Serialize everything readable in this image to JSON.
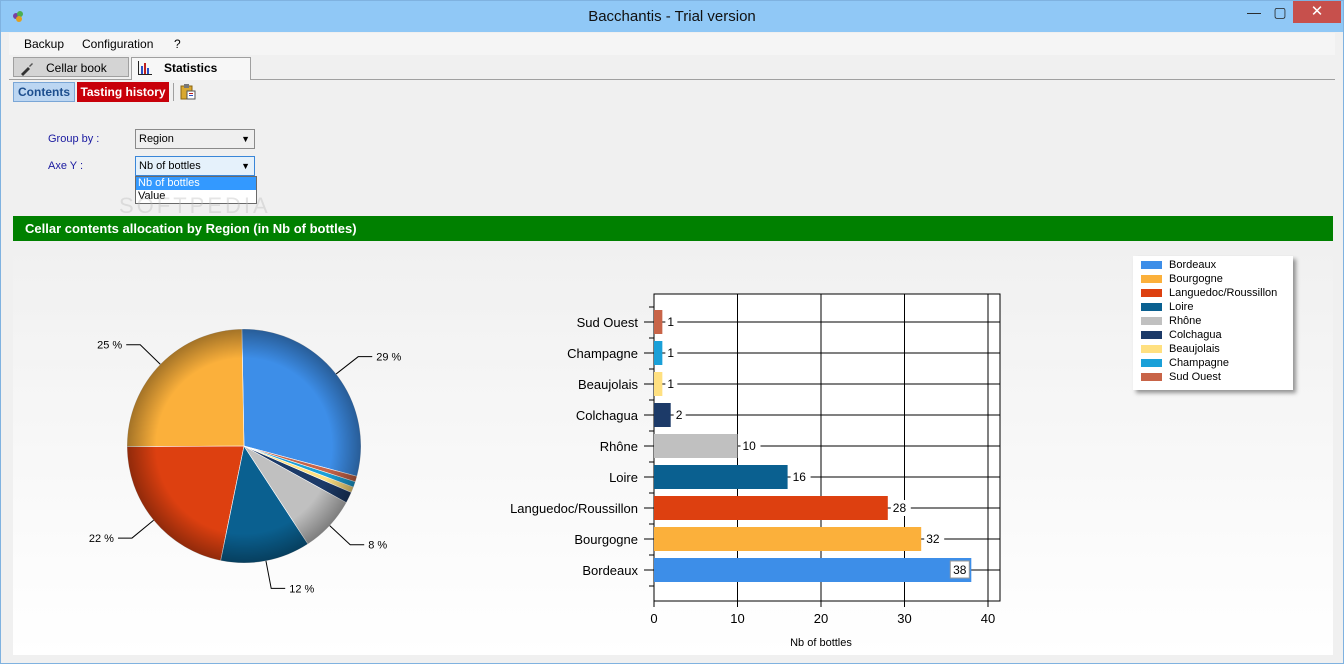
{
  "window": {
    "title": "Bacchantis - Trial version",
    "min_glyph": "—",
    "max_glyph": "▢",
    "close_glyph": "✕"
  },
  "menu": [
    "Backup",
    "Configuration",
    "?"
  ],
  "tabs": [
    {
      "label": "Cellar book",
      "icon": "wine-bottle-icon"
    },
    {
      "label": "Statistics",
      "icon": "bar-chart-icon"
    }
  ],
  "subtoolbar": {
    "contents_label": "Contents",
    "tasting_label": "Tasting history",
    "export_icon": "clipboard-export-icon"
  },
  "form": {
    "group_by_label": "Group by :",
    "group_by_value": "Region",
    "axe_y_label": "Axe Y :",
    "axe_y_value": "Nb of bottles",
    "axe_y_options": [
      "Nb of bottles",
      "Value"
    ]
  },
  "watermark": "SOFTPEDIA",
  "banner": "Cellar contents allocation by Region (in Nb of bottles)",
  "chart_data": [
    {
      "type": "pie",
      "categories": [
        "Bordeaux",
        "Bourgogne",
        "Languedoc/Roussillon",
        "Loire",
        "Rhône",
        "Colchagua",
        "Beaujolais",
        "Champagne",
        "Sud Ouest"
      ],
      "values": [
        38,
        32,
        28,
        16,
        10,
        2,
        1,
        1,
        1
      ],
      "labels": [
        "29 %",
        "25 %",
        "22 %",
        "12 %",
        "8 %"
      ],
      "colors": [
        "#3d8ee8",
        "#fbb03b",
        "#dd4010",
        "#0a6090",
        "#c0c0c0",
        "#1c3a68",
        "#ffe080",
        "#1aa0d8",
        "#c86448"
      ]
    },
    {
      "type": "bar",
      "orientation": "horizontal",
      "categories": [
        "Bordeaux",
        "Bourgogne",
        "Languedoc/Roussillon",
        "Loire",
        "Rhône",
        "Colchagua",
        "Beaujolais",
        "Champagne",
        "Sud Ouest"
      ],
      "values": [
        38,
        32,
        28,
        16,
        10,
        2,
        1,
        1,
        1
      ],
      "value_labels": [
        "38",
        "32",
        "28",
        "16",
        "10",
        "2",
        "1",
        "1",
        "1"
      ],
      "xlabel": "Nb of bottles",
      "xlim": [
        0,
        40
      ],
      "xticks": [
        "0",
        "10",
        "20",
        "30",
        "40"
      ],
      "grid": true,
      "colors": [
        "#3d8ee8",
        "#fbb03b",
        "#dd4010",
        "#0a6090",
        "#c0c0c0",
        "#1c3a68",
        "#ffe080",
        "#1aa0d8",
        "#c86448"
      ]
    }
  ],
  "legend": {
    "placement": "top-right",
    "entries": [
      "Bordeaux",
      "Bourgogne",
      "Languedoc/Roussillon",
      "Loire",
      "Rhône",
      "Colchagua",
      "Beaujolais",
      "Champagne",
      "Sud Ouest"
    ],
    "colors": [
      "#3d8ee8",
      "#fbb03b",
      "#dd4010",
      "#0a6090",
      "#c0c0c0",
      "#1c3a68",
      "#ffe080",
      "#1aa0d8",
      "#c86448"
    ]
  }
}
